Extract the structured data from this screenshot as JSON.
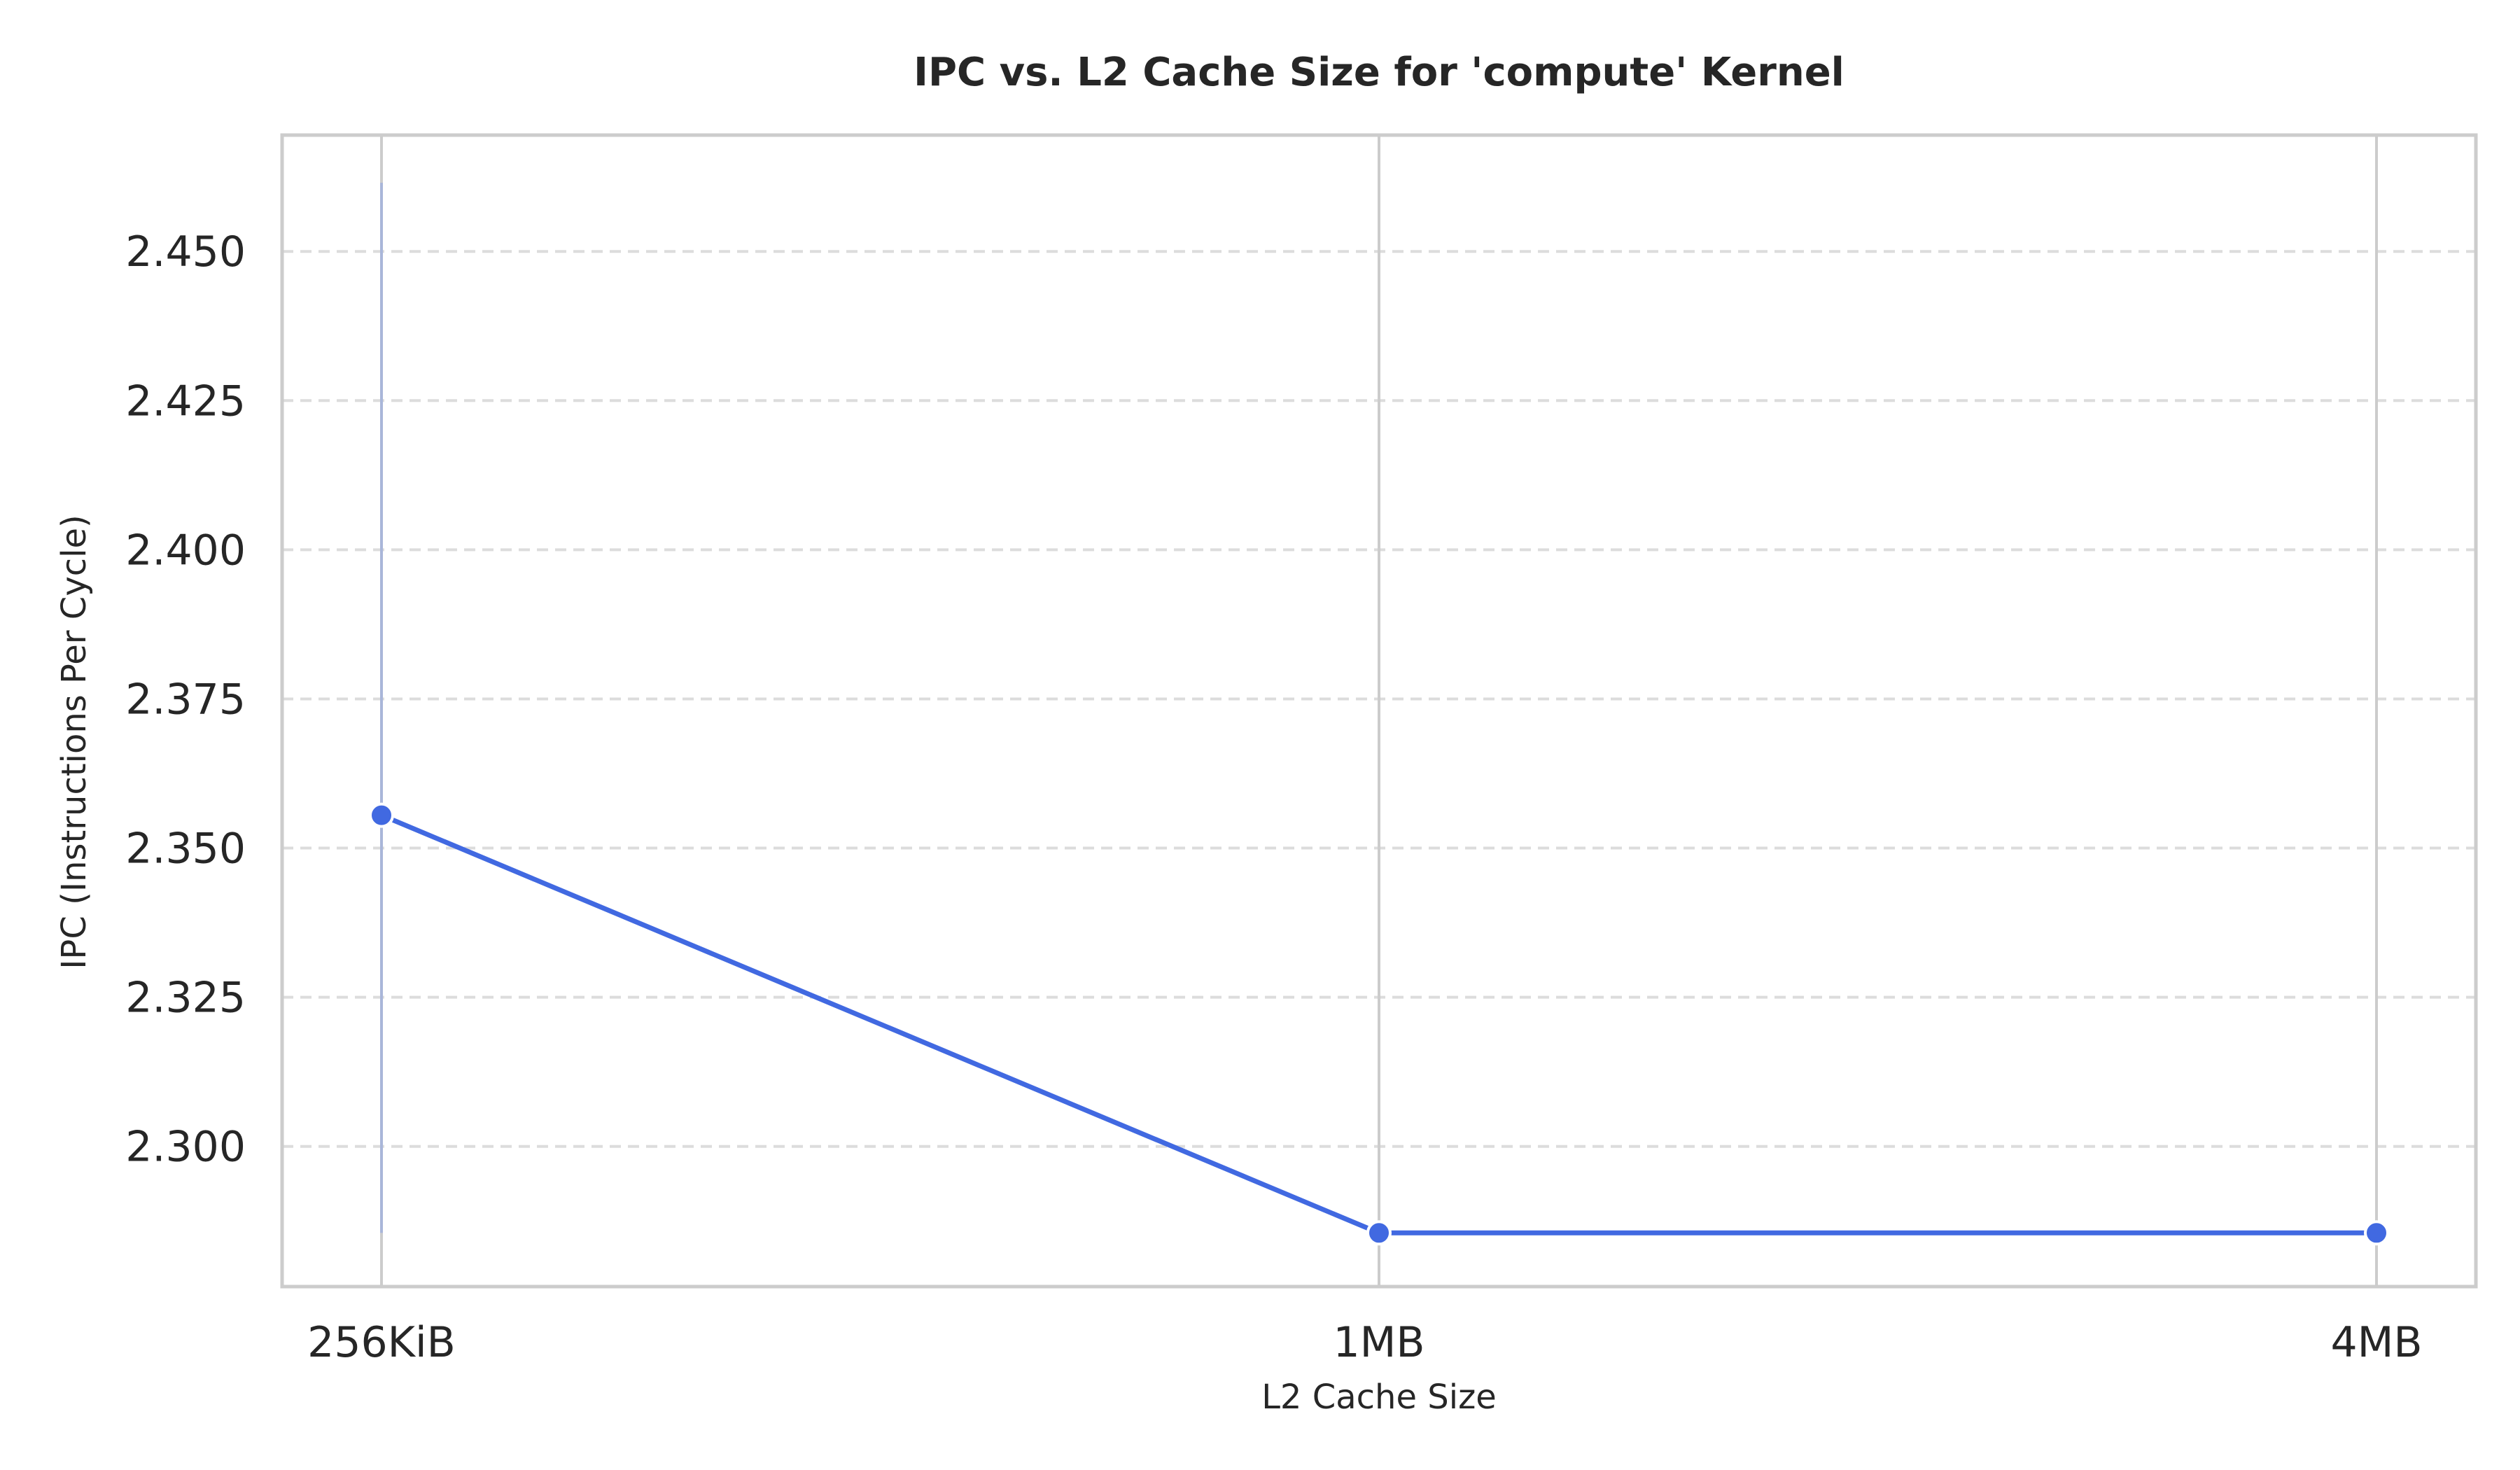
{
  "chart_data": {
    "type": "line",
    "title": "IPC vs. L2 Cache Size for 'compute' Kernel",
    "xlabel": "L2 Cache Size",
    "ylabel": "IPC (Instructions Per Cycle)",
    "categories": [
      "256KiB",
      "1MB",
      "4MB"
    ],
    "y_ticks": [
      "2.300",
      "2.325",
      "2.350",
      "2.375",
      "2.400",
      "2.425",
      "2.450"
    ],
    "ylim": [
      2.2765,
      2.4695
    ],
    "series": [
      {
        "values": [
          2.3555,
          2.2855,
          2.2855
        ],
        "error_bars": [
          [
            2.2855,
            2.4615
          ],
          null,
          null
        ]
      }
    ],
    "grid": {
      "horizontal": "dashed",
      "vertical": "solid"
    },
    "colors": {
      "line": "#4169E1",
      "error_bar": "#A9B6D9",
      "grid_h": "#DCDCDC",
      "grid_v": "#CCCCCC",
      "frame": "#CCCCCC",
      "text": "#262626"
    }
  }
}
